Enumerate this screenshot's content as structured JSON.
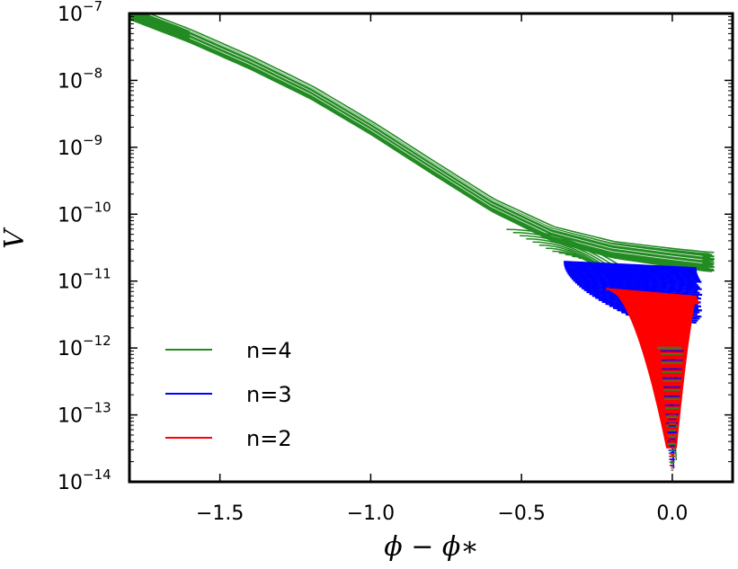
{
  "chart_data": {
    "type": "line",
    "title": "",
    "xlabel": "ϕ − ϕ∗",
    "ylabel": "V",
    "xlim": [
      -1.8,
      0.2
    ],
    "ylim": [
      1e-14,
      1e-07
    ],
    "yscale": "log",
    "grid": false,
    "legend_position": "lower-left",
    "x_ticks": [
      {
        "value": -1.5,
        "label": "−1.5"
      },
      {
        "value": -1.0,
        "label": "−1.0"
      },
      {
        "value": -0.5,
        "label": "−0.5"
      },
      {
        "value": 0.0,
        "label": "0.0"
      }
    ],
    "y_ticks": [
      {
        "exp": -7,
        "base": "10",
        "power": "−7"
      },
      {
        "exp": -8,
        "base": "10",
        "power": "−8"
      },
      {
        "exp": -9,
        "base": "10",
        "power": "−9"
      },
      {
        "exp": -10,
        "base": "10",
        "power": "−10"
      },
      {
        "exp": -11,
        "base": "10",
        "power": "−11"
      },
      {
        "exp": -12,
        "base": "10",
        "power": "−12"
      },
      {
        "exp": -13,
        "base": "10",
        "power": "−13"
      },
      {
        "exp": -14,
        "base": "10",
        "power": "−14"
      }
    ],
    "series": [
      {
        "name": "n=4",
        "color": "#228b22",
        "x": [
          -1.8,
          -1.6,
          -1.4,
          -1.2,
          -1.0,
          -0.8,
          -0.6,
          -0.4,
          -0.2,
          0.0,
          0.12
        ],
        "y": [
          1e-07,
          4.5e-08,
          1.8e-08,
          6.5e-09,
          1.9e-09,
          5e-10,
          1.35e-10,
          5e-11,
          2.9e-11,
          2.2e-11,
          1.9e-11
        ]
      },
      {
        "name": "n=3",
        "color": "#0000ff",
        "x": [
          -0.38,
          -0.3,
          -0.2,
          -0.1,
          0.0,
          0.1
        ],
        "y": [
          2e-11,
          1.8e-11,
          1.6e-11,
          1.4e-11,
          1.25e-11,
          1.1e-11
        ]
      },
      {
        "name": "n=2",
        "color": "#ff0000",
        "x": [
          -0.25,
          -0.15,
          -0.05,
          0.0,
          0.05,
          0.1
        ],
        "y": [
          8e-12,
          7e-12,
          6e-12,
          5.5e-12,
          5e-12,
          4.5e-12
        ]
      }
    ]
  }
}
